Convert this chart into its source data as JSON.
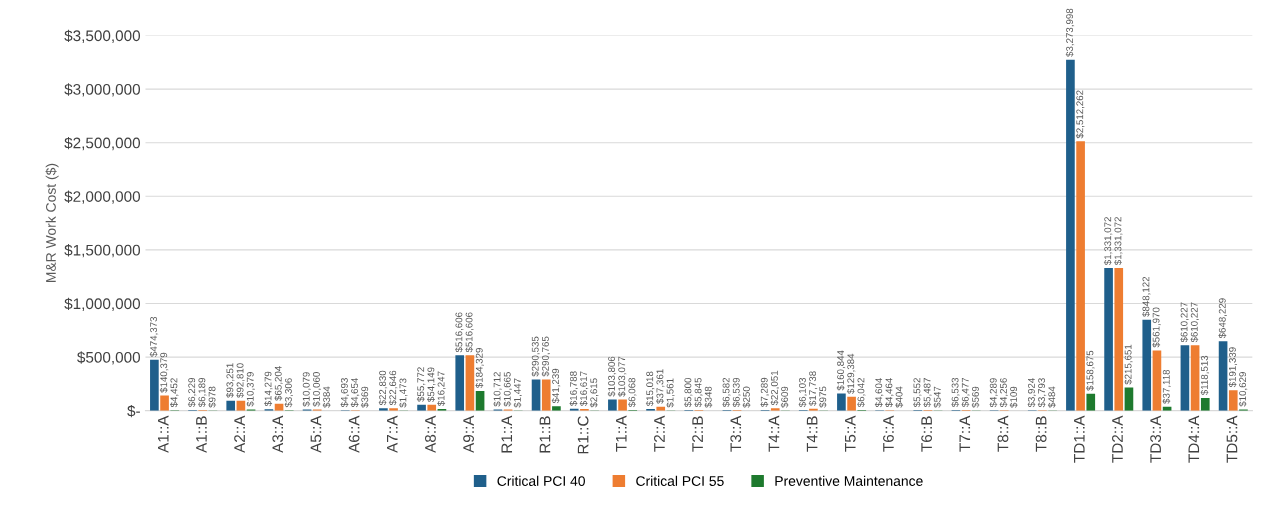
{
  "chart_data": {
    "type": "bar",
    "ylabel": "M&R Work Cost ($)",
    "categories": [
      "A1::A",
      "A1::B",
      "A2::A",
      "A3::A",
      "A5::A",
      "A6::A",
      "A7::A",
      "A8::A",
      "A9::A",
      "R1::A",
      "R1::B",
      "R1::C",
      "T1::A",
      "T2::A",
      "T2::B",
      "T3::A",
      "T4::A",
      "T4::B",
      "T5::A",
      "T6::A",
      "T6::B",
      "T7::A",
      "T8::A",
      "T8::B",
      "TD1::A",
      "TD2::A",
      "TD3::A",
      "TD4::A",
      "TD5::A"
    ],
    "series": [
      {
        "name": "Critical PCI 40",
        "color": "#1f5f8b",
        "values": [
          474373,
          6229,
          93251,
          14279,
          10079,
          4693,
          22830,
          55772,
          516606,
          10712,
          290535,
          16788,
          103806,
          15018,
          5800,
          6582,
          7289,
          6103,
          160844,
          4604,
          5552,
          6533,
          4289,
          3924,
          3273998,
          1331072,
          848122,
          610227,
          648229
        ],
        "value_labels": [
          "$474,373",
          "$6,229",
          "$93,251",
          "$14,279",
          "$10,079",
          "$4,693",
          "$22,830",
          "$55,772",
          "$516,606",
          "$10,712",
          "$290,535",
          "$16,788",
          "$103,806",
          "$15,018",
          "$5,800",
          "$6,582",
          "$7,289",
          "$6,103",
          "$160,844",
          "$4,604",
          "$5,552",
          "$6,533",
          "$4,289",
          "$3,924",
          "$3,273,998",
          "$1,331,072",
          "$848,122",
          "$610,227",
          "$648,229"
        ]
      },
      {
        "name": "Critical PCI 55",
        "color": "#ee7d31",
        "values": [
          140379,
          6189,
          92810,
          65204,
          10060,
          4654,
          22646,
          54149,
          516606,
          10665,
          290765,
          16617,
          103077,
          37361,
          5845,
          6539,
          22051,
          17738,
          129384,
          4464,
          5487,
          6477,
          4256,
          3793,
          2512262,
          1331072,
          561970,
          610227,
          191339
        ],
        "value_labels": [
          "$140,379",
          "$6,189",
          "$92,810",
          "$65,204",
          "$10,060",
          "$4,654",
          "$22,646",
          "$54,149",
          "$516,606",
          "$10,665",
          "$290,765",
          "$16,617",
          "$103,077",
          "$37,361",
          "$5,845",
          "$6,539",
          "$22,051",
          "$17,738",
          "$129,384",
          "$4,464",
          "$5,487",
          "$6,477",
          "$4,256",
          "$3,793",
          "$2,512,262",
          "$1,331,072",
          "$561,970",
          "$610,227",
          "$191,339"
        ]
      },
      {
        "name": "Preventive Maintenance",
        "color": "#1e7a2e",
        "values": [
          4452,
          978,
          10379,
          3306,
          384,
          369,
          1473,
          16247,
          184329,
          1447,
          41239,
          2615,
          6068,
          1561,
          348,
          250,
          609,
          975,
          6042,
          404,
          547,
          569,
          109,
          484,
          158675,
          215651,
          37118,
          118513,
          10629
        ],
        "value_labels": [
          "$4,452",
          "$978",
          "$10,379",
          "$3,306",
          "$384",
          "$369",
          "$1,473",
          "$16,247",
          "$184,329",
          "$1,447",
          "$41,239",
          "$2,615",
          "$6,068",
          "$1,561",
          "$348",
          "$250",
          "$609",
          "$975",
          "$6,042",
          "$404",
          "$547",
          "$569",
          "$109",
          "$484",
          "$158,675",
          "$215,651",
          "$37,118",
          "$118,513",
          "$10,629"
        ]
      }
    ],
    "ylim": [
      0,
      3500000
    ],
    "yticks": [
      {
        "value": 0,
        "label": "$-"
      },
      {
        "value": 500000,
        "label": "$500,000"
      },
      {
        "value": 1000000,
        "label": "$1,000,000"
      },
      {
        "value": 1500000,
        "label": "$1,500,000"
      },
      {
        "value": 2000000,
        "label": "$2,000,000"
      },
      {
        "value": 2500000,
        "label": "$2,500,000"
      },
      {
        "value": 3000000,
        "label": "$3,000,000"
      },
      {
        "value": 3500000,
        "label": "$3,500,000"
      }
    ],
    "grid": "y",
    "legend": "bottom"
  }
}
